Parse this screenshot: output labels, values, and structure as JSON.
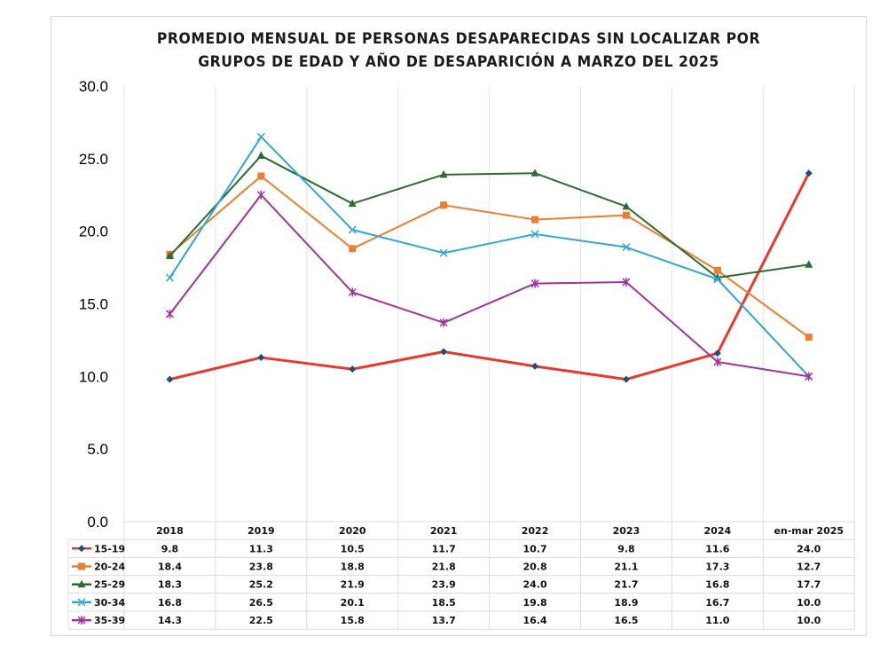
{
  "chart_data": {
    "type": "line",
    "title_line1": "PROMEDIO MENSUAL DE PERSONAS DESAPARECIDAS SIN LOCALIZAR POR",
    "title_line2": "GRUPOS DE EDAD Y AÑO DE DESAPARICIÓN A MARZO DEL 2025",
    "categories": [
      "2018",
      "2019",
      "2020",
      "2021",
      "2022",
      "2023",
      "2024",
      "en-mar 2025"
    ],
    "ylim": [
      0,
      30
    ],
    "yticks": [
      "0.0",
      "5.0",
      "10.0",
      "15.0",
      "20.0",
      "25.0",
      "30.0"
    ],
    "grid": "vertical",
    "legend": "data-table",
    "series": [
      {
        "name": "15-19",
        "values": [
          9.8,
          11.3,
          10.5,
          11.7,
          10.7,
          9.8,
          11.6,
          24.0
        ],
        "labels": [
          "9.8",
          "11.3",
          "10.5",
          "11.7",
          "10.7",
          "9.8",
          "11.6",
          "24.0"
        ],
        "color": "#e8392b",
        "marker": "diamond",
        "marker_color": "#1f4e79"
      },
      {
        "name": "20-24",
        "values": [
          18.4,
          23.8,
          18.8,
          21.8,
          20.8,
          21.1,
          17.3,
          12.7
        ],
        "labels": [
          "18.4",
          "23.8",
          "18.8",
          "21.8",
          "20.8",
          "21.1",
          "17.3",
          "12.7"
        ],
        "color": "#ed7d31",
        "marker": "square",
        "marker_color": "#ed7d31"
      },
      {
        "name": "25-29",
        "values": [
          18.3,
          25.2,
          21.9,
          23.9,
          24.0,
          21.7,
          16.8,
          17.7
        ],
        "labels": [
          "18.3",
          "25.2",
          "21.9",
          "23.9",
          "24.0",
          "21.7",
          "16.8",
          "17.7"
        ],
        "color": "#2e6b30",
        "marker": "triangle",
        "marker_color": "#2e6b30"
      },
      {
        "name": "30-34",
        "values": [
          16.8,
          26.5,
          20.1,
          18.5,
          19.8,
          18.9,
          16.7,
          10.0
        ],
        "labels": [
          "16.8",
          "26.5",
          "20.1",
          "18.5",
          "19.8",
          "18.9",
          "16.7",
          "10.0"
        ],
        "color": "#2ea6d8",
        "marker": "x",
        "marker_color": "#2ea6d8"
      },
      {
        "name": "35-39",
        "values": [
          14.3,
          22.5,
          15.8,
          13.7,
          16.4,
          16.5,
          11.0,
          10.0
        ],
        "labels": [
          "14.3",
          "22.5",
          "15.8",
          "13.7",
          "16.4",
          "16.5",
          "11.0",
          "10.0"
        ],
        "color": "#a033a0",
        "marker": "star",
        "marker_color": "#a033a0"
      }
    ]
  }
}
